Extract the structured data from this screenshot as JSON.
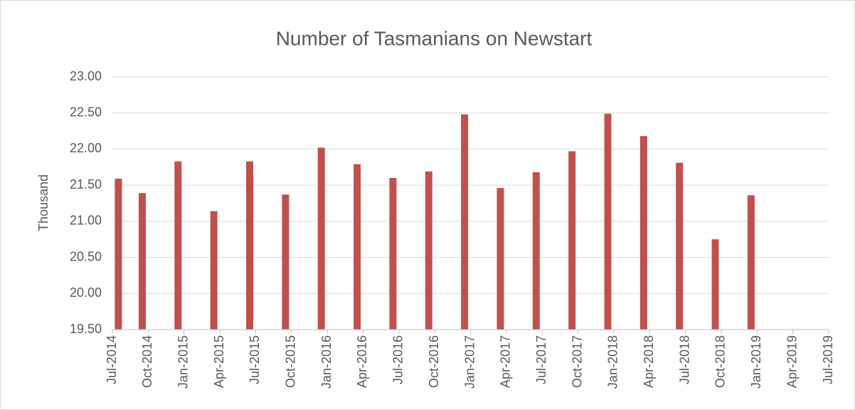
{
  "chart_data": {
    "type": "bar",
    "title": "Number of Tasmanians on Newstart",
    "y_label": "Thousand",
    "x": [
      "2014-07",
      "2014-09",
      "2014-12",
      "2015-03",
      "2015-06",
      "2015-09",
      "2015-12",
      "2016-03",
      "2016-06",
      "2016-09",
      "2016-12",
      "2017-03",
      "2017-06",
      "2017-09",
      "2017-12",
      "2018-03",
      "2018-06",
      "2018-09",
      "2018-12"
    ],
    "values": [
      21.59,
      21.39,
      21.83,
      21.14,
      21.83,
      21.37,
      22.02,
      21.79,
      21.6,
      21.69,
      22.48,
      21.46,
      21.68,
      21.97,
      22.49,
      22.18,
      21.81,
      20.75,
      21.36
    ],
    "color": "#c0504d",
    "xticks": [
      {
        "value": "2014-07",
        "label": "Jul-2014"
      },
      {
        "value": "2014-10",
        "label": "Oct-2014"
      },
      {
        "value": "2015-01",
        "label": "Jan-2015"
      },
      {
        "value": "2015-04",
        "label": "Apr-2015"
      },
      {
        "value": "2015-07",
        "label": "Jul-2015"
      },
      {
        "value": "2015-10",
        "label": "Oct-2015"
      },
      {
        "value": "2016-01",
        "label": "Jan-2016"
      },
      {
        "value": "2016-04",
        "label": "Apr-2016"
      },
      {
        "value": "2016-07",
        "label": "Jul-2016"
      },
      {
        "value": "2016-10",
        "label": "Oct-2016"
      },
      {
        "value": "2017-01",
        "label": "Jan-2017"
      },
      {
        "value": "2017-04",
        "label": "Apr-2017"
      },
      {
        "value": "2017-07",
        "label": "Jul-2017"
      },
      {
        "value": "2017-10",
        "label": "Oct-2017"
      },
      {
        "value": "2018-01",
        "label": "Jan-2018"
      },
      {
        "value": "2018-04",
        "label": "Apr-2018"
      },
      {
        "value": "2018-07",
        "label": "Jul-2018"
      },
      {
        "value": "2018-10",
        "label": "Oct-2018"
      },
      {
        "value": "2019-01",
        "label": "Jan-2019"
      },
      {
        "value": "2019-04",
        "label": "Apr-2019"
      },
      {
        "value": "2019-07",
        "label": "Jul-2019"
      }
    ],
    "ylim": [
      19.5,
      23
    ],
    "yticks": [
      {
        "value": 19.5,
        "label": "19.50"
      },
      {
        "value": 20,
        "label": "20.00"
      },
      {
        "value": 20.5,
        "label": "20.50"
      },
      {
        "value": 21,
        "label": "21.00"
      },
      {
        "value": 21.5,
        "label": "21.50"
      },
      {
        "value": 22,
        "label": "22.00"
      },
      {
        "value": 22.5,
        "label": "22.50"
      },
      {
        "value": 23,
        "label": "23.00"
      }
    ],
    "grid": true
  }
}
